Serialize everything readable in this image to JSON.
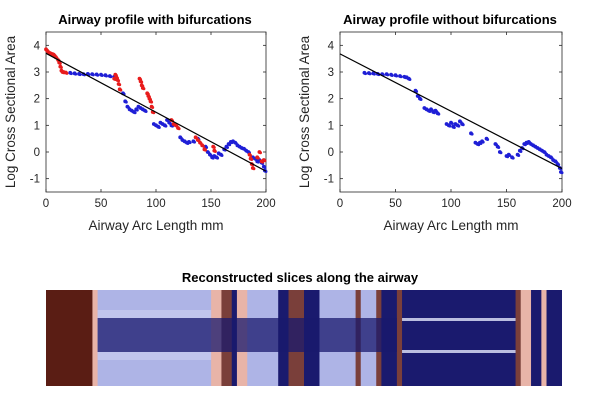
{
  "chart_data": [
    {
      "type": "scatter",
      "title": "Airway profile with bifurcations",
      "xlabel": "Airway Arc Length mm",
      "ylabel": "Log Cross Sectional Area",
      "xlim": [
        0,
        200
      ],
      "ylim": [
        -1.5,
        4.5
      ],
      "xticks": [
        "0",
        "50",
        "100",
        "150",
        "200"
      ],
      "yticks": [
        "-1",
        "0",
        "1",
        "2",
        "3",
        "4"
      ],
      "grid": false,
      "colors": {
        "series_blue": "#1f1fd6",
        "series_red": "#e81c1c",
        "fit": "#000000"
      },
      "series": [
        {
          "color": "blue",
          "points": [
            [
              22,
              2.97
            ],
            [
              26,
              2.95
            ],
            [
              30,
              2.93
            ],
            [
              34,
              2.92
            ],
            [
              38,
              2.93
            ],
            [
              42,
              2.92
            ],
            [
              46,
              2.91
            ],
            [
              50,
              2.9
            ],
            [
              54,
              2.88
            ],
            [
              58,
              2.85
            ],
            [
              62,
              2.82
            ],
            [
              70,
              2.2
            ],
            [
              72,
              1.9
            ],
            [
              74,
              1.7
            ],
            [
              76,
              1.6
            ],
            [
              78,
              1.55
            ],
            [
              80,
              1.5
            ],
            [
              82,
              1.6
            ],
            [
              84,
              1.7
            ],
            [
              86,
              1.65
            ],
            [
              88,
              1.6
            ],
            [
              90,
              1.55
            ],
            [
              98,
              1.05
            ],
            [
              100,
              1.0
            ],
            [
              102,
              0.95
            ],
            [
              104,
              1.1
            ],
            [
              106,
              1.05
            ],
            [
              108,
              1.0
            ],
            [
              110,
              1.2
            ],
            [
              112,
              1.1
            ],
            [
              114,
              1.0
            ],
            [
              122,
              0.55
            ],
            [
              124,
              0.45
            ],
            [
              126,
              0.4
            ],
            [
              128,
              0.35
            ],
            [
              130,
              0.38
            ],
            [
              134,
              0.4
            ],
            [
              138,
              0.5
            ],
            [
              145,
              0.2
            ],
            [
              147,
              0.0
            ],
            [
              149,
              -0.1
            ],
            [
              151,
              -0.2
            ],
            [
              153,
              -0.15
            ],
            [
              155,
              -0.2
            ],
            [
              157,
              -0.05
            ],
            [
              159,
              -0.1
            ],
            [
              162,
              0.1
            ],
            [
              164,
              0.2
            ],
            [
              166,
              0.3
            ],
            [
              168,
              0.38
            ],
            [
              170,
              0.4
            ],
            [
              172,
              0.35
            ],
            [
              174,
              0.25
            ],
            [
              176,
              0.2
            ],
            [
              178,
              0.15
            ],
            [
              180,
              0.12
            ],
            [
              182,
              0.05
            ],
            [
              184,
              0.0
            ],
            [
              188,
              -0.2
            ],
            [
              190,
              -0.25
            ],
            [
              192,
              -0.35
            ],
            [
              194,
              -0.3
            ],
            [
              196,
              -0.4
            ],
            [
              198,
              -0.55
            ],
            [
              199,
              -0.7
            ]
          ]
        },
        {
          "color": "red",
          "points": [
            [
              0,
              3.85
            ],
            [
              1,
              3.8
            ],
            [
              2,
              3.75
            ],
            [
              3,
              3.72
            ],
            [
              4,
              3.7
            ],
            [
              5,
              3.68
            ],
            [
              6,
              3.67
            ],
            [
              7,
              3.65
            ],
            [
              8,
              3.6
            ],
            [
              9,
              3.55
            ],
            [
              11,
              3.45
            ],
            [
              12,
              3.35
            ],
            [
              13,
              3.2
            ],
            [
              14,
              3.05
            ],
            [
              15,
              3.0
            ],
            [
              16,
              3.0
            ],
            [
              18,
              2.98
            ],
            [
              62,
              2.75
            ],
            [
              63,
              2.9
            ],
            [
              64,
              2.8
            ],
            [
              65,
              2.7
            ],
            [
              66,
              2.55
            ],
            [
              67,
              2.35
            ],
            [
              85,
              2.75
            ],
            [
              86,
              2.65
            ],
            [
              87,
              2.5
            ],
            [
              88,
              2.4
            ],
            [
              92,
              2.2
            ],
            [
              93,
              2.1
            ],
            [
              94,
              2.0
            ],
            [
              95,
              1.9
            ],
            [
              96,
              1.7
            ],
            [
              97,
              1.5
            ],
            [
              114,
              1.2
            ],
            [
              116,
              1.05
            ],
            [
              118,
              1.0
            ],
            [
              120,
              0.9
            ],
            [
              136,
              0.55
            ],
            [
              138,
              0.45
            ],
            [
              140,
              0.35
            ],
            [
              142,
              0.25
            ],
            [
              144,
              0.1
            ],
            [
              152,
              0.2
            ],
            [
              153,
              0.05
            ],
            [
              185,
              -0.1
            ],
            [
              186,
              -0.25
            ],
            [
              187,
              -0.45
            ],
            [
              188,
              -0.6
            ],
            [
              192,
              -0.2
            ],
            [
              194,
              0.0
            ],
            [
              196,
              -0.35
            ],
            [
              198,
              -0.3
            ]
          ]
        }
      ],
      "fit_line": {
        "x": [
          0,
          200
        ],
        "y": [
          3.7,
          -0.72
        ]
      }
    },
    {
      "type": "scatter",
      "title": "Airway profile without bifurcations",
      "xlabel": "Airway Arc Length mm",
      "ylabel": "Log Cross Sectional Area",
      "xlim": [
        0,
        200
      ],
      "ylim": [
        -1.5,
        4.5
      ],
      "xticks": [
        "0",
        "50",
        "100",
        "150",
        "200"
      ],
      "yticks": [
        "-1",
        "0",
        "1",
        "2",
        "3",
        "4"
      ],
      "grid": false,
      "colors": {
        "series_blue": "#1f1fd6",
        "fit": "#000000"
      },
      "series": [
        {
          "color": "blue",
          "points": [
            [
              22,
              2.97
            ],
            [
              26,
              2.96
            ],
            [
              30,
              2.95
            ],
            [
              34,
              2.93
            ],
            [
              38,
              2.92
            ],
            [
              42,
              2.92
            ],
            [
              46,
              2.9
            ],
            [
              50,
              2.88
            ],
            [
              54,
              2.85
            ],
            [
              58,
              2.82
            ],
            [
              60,
              2.8
            ],
            [
              62,
              2.75
            ],
            [
              68,
              2.3
            ],
            [
              70,
              2.1
            ],
            [
              72,
              2.0
            ],
            [
              76,
              1.65
            ],
            [
              78,
              1.6
            ],
            [
              80,
              1.55
            ],
            [
              82,
              1.6
            ],
            [
              84,
              1.5
            ],
            [
              86,
              1.55
            ],
            [
              88,
              1.45
            ],
            [
              96,
              1.05
            ],
            [
              98,
              1.0
            ],
            [
              100,
              1.1
            ],
            [
              102,
              0.95
            ],
            [
              104,
              1.05
            ],
            [
              106,
              1.0
            ],
            [
              108,
              1.15
            ],
            [
              110,
              1.05
            ],
            [
              118,
              0.7
            ],
            [
              122,
              0.35
            ],
            [
              124,
              0.3
            ],
            [
              126,
              0.35
            ],
            [
              128,
              0.4
            ],
            [
              132,
              0.5
            ],
            [
              140,
              0.3
            ],
            [
              142,
              0.2
            ],
            [
              144,
              0.0
            ],
            [
              150,
              -0.15
            ],
            [
              152,
              -0.1
            ],
            [
              155,
              -0.2
            ],
            [
              160,
              -0.1
            ],
            [
              162,
              0.05
            ],
            [
              164,
              0.15
            ],
            [
              166,
              0.3
            ],
            [
              168,
              0.35
            ],
            [
              170,
              0.38
            ],
            [
              172,
              0.3
            ],
            [
              174,
              0.25
            ],
            [
              176,
              0.2
            ],
            [
              178,
              0.15
            ],
            [
              180,
              0.1
            ],
            [
              182,
              0.05
            ],
            [
              184,
              0.0
            ],
            [
              186,
              -0.1
            ],
            [
              188,
              -0.15
            ],
            [
              190,
              -0.2
            ],
            [
              192,
              -0.3
            ],
            [
              194,
              -0.35
            ],
            [
              196,
              -0.45
            ],
            [
              198,
              -0.6
            ],
            [
              199,
              -0.75
            ]
          ]
        }
      ],
      "fit_line": {
        "x": [
          0,
          200
        ],
        "y": [
          3.68,
          -0.62
        ]
      }
    },
    {
      "type": "heatmap",
      "title": "Reconstructed slices along the airway",
      "colors": {
        "dark_red": "#5a1d14",
        "pink": "#e8b4a8",
        "lavender": "#aeb4e6",
        "navy": "#1a1a6e",
        "brown": "#7a3f3a"
      },
      "bands": [
        {
          "from": 0.0,
          "to": 0.09,
          "color": "dark_red"
        },
        {
          "from": 0.09,
          "to": 0.1,
          "color": "pink"
        },
        {
          "from": 0.1,
          "to": 0.32,
          "color": "lavender"
        },
        {
          "from": 0.32,
          "to": 0.34,
          "color": "pink"
        },
        {
          "from": 0.34,
          "to": 0.36,
          "color": "brown"
        },
        {
          "from": 0.36,
          "to": 0.37,
          "color": "navy"
        },
        {
          "from": 0.37,
          "to": 0.39,
          "color": "pink"
        },
        {
          "from": 0.39,
          "to": 0.45,
          "color": "lavender"
        },
        {
          "from": 0.45,
          "to": 0.47,
          "color": "navy"
        },
        {
          "from": 0.47,
          "to": 0.5,
          "color": "brown"
        },
        {
          "from": 0.5,
          "to": 0.53,
          "color": "navy"
        },
        {
          "from": 0.53,
          "to": 0.6,
          "color": "lavender"
        },
        {
          "from": 0.6,
          "to": 0.61,
          "color": "brown"
        },
        {
          "from": 0.61,
          "to": 0.64,
          "color": "lavender"
        },
        {
          "from": 0.64,
          "to": 0.65,
          "color": "brown"
        },
        {
          "from": 0.65,
          "to": 0.68,
          "color": "navy"
        },
        {
          "from": 0.68,
          "to": 0.69,
          "color": "brown"
        },
        {
          "from": 0.69,
          "to": 0.91,
          "color": "navy"
        },
        {
          "from": 0.91,
          "to": 0.92,
          "color": "brown"
        },
        {
          "from": 0.92,
          "to": 0.94,
          "color": "pink"
        },
        {
          "from": 0.94,
          "to": 0.96,
          "color": "navy"
        },
        {
          "from": 0.96,
          "to": 0.97,
          "color": "pink"
        },
        {
          "from": 0.97,
          "to": 1.0,
          "color": "navy"
        }
      ]
    }
  ]
}
